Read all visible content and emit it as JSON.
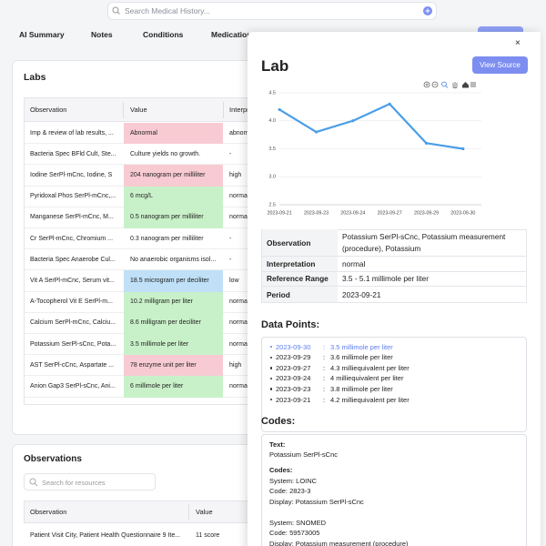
{
  "search_placeholder": "Search Medical History...",
  "tabs": [
    "AI Summary",
    "Notes",
    "Conditions",
    "Medications"
  ],
  "labs": {
    "title": "Labs",
    "columns": [
      "Observation",
      "Value",
      "Interpretation"
    ],
    "rows": [
      {
        "observation": "Imp & review of lab results, ...",
        "value": "Abnormal",
        "interpretation": "abnormal",
        "highlight": "#f8cbd3"
      },
      {
        "observation": "Bacteria Spec BFld Cult, Ste...",
        "value": "Culture yields no growth.",
        "interpretation": "-",
        "highlight": null
      },
      {
        "observation": "Iodine SerPl-mCnc, Iodine, S",
        "value": "204 nanogram per milliliter",
        "interpretation": "high",
        "highlight": "#f8cbd3"
      },
      {
        "observation": "Pyridoxal Phos SerPl-mCnc,...",
        "value": "6 mcg/L",
        "interpretation": "normal",
        "highlight": "#c9f1c9"
      },
      {
        "observation": "Manganese SerPl-mCnc, M...",
        "value": "0.5 nanogram per milliliter",
        "interpretation": "normal",
        "highlight": "#c9f1c9"
      },
      {
        "observation": "Cr SerPl-mCnc, Chromium ...",
        "value": "0.3 nanogram per milliliter",
        "interpretation": "-",
        "highlight": null
      },
      {
        "observation": "Bacteria Spec Anaerobe Cul...",
        "value": "No anaerobic organisms isol...",
        "interpretation": "-",
        "highlight": null
      },
      {
        "observation": "Vit A SerPl-mCnc, Serum vit...",
        "value": "18.5 microgram per deciliter",
        "interpretation": "low",
        "highlight": "#bfe0f6"
      },
      {
        "observation": "A-Tocopherol Vit E SerPl-m...",
        "value": "10.2 milligram per liter",
        "interpretation": "normal",
        "highlight": "#c9f1c9"
      },
      {
        "observation": "Calcium SerPl-mCnc, Calciu...",
        "value": "8.6 milligram per deciliter",
        "interpretation": "normal",
        "highlight": "#c9f1c9"
      },
      {
        "observation": "Potassium SerPl-sCnc, Pota...",
        "value": "3.5 millimole per liter",
        "interpretation": "normal",
        "highlight": "#c9f1c9"
      },
      {
        "observation": "AST SerPl-cCnc, Aspartate ...",
        "value": "78 enzyme unit per liter",
        "interpretation": "high",
        "highlight": "#f8cbd3"
      },
      {
        "observation": "Anion Gap3 SerPl-sCnc, Ani...",
        "value": "6 millimole per liter",
        "interpretation": "normal",
        "highlight": "#c9f1c9"
      }
    ]
  },
  "observations": {
    "title": "Observations",
    "search_placeholder": "Search for resources",
    "columns": [
      "Observation",
      "Value"
    ],
    "rows": [
      [
        "Patient Visit City, Patient Health Questionnaire 9 Ite...",
        "11 score"
      ]
    ]
  },
  "panel": {
    "close": "×",
    "title": "Lab",
    "button": "View Source"
  },
  "chart_data": {
    "type": "line",
    "categories": [
      "2023-09-21",
      "2023-09-23",
      "2023-09-24",
      "2023-09-27",
      "2023-09-29",
      "2023-09-30"
    ],
    "values": [
      4.2,
      3.8,
      4.0,
      4.3,
      3.6,
      3.5
    ],
    "color": "#4a9ee8",
    "ylim": [
      2.5,
      4.5
    ],
    "yticks": [
      2.5,
      {
        "value": 3.0,
        "label": "3.0"
      },
      3.5,
      {
        "value": 4.0,
        "label": "4.0"
      },
      4.5
    ],
    "grid": true
  },
  "details": [
    {
      "label": "Observation",
      "value": "Potassium SerPl-sCnc, Potassium measurement (procedure), Potassium"
    },
    {
      "label": "Interpretation",
      "value": "normal"
    },
    {
      "label": "Reference Range",
      "value": "3.5 - 5.1 millimole per liter"
    },
    {
      "label": "Period",
      "value": "2023-09-21"
    }
  ],
  "data_points": {
    "title": "Data Points:",
    "separator": ":",
    "items": [
      {
        "date": "2023-09-30",
        "value": "3.5 millimole per liter"
      },
      {
        "date": "2023-09-29",
        "value": "3.6 millimole per liter"
      },
      {
        "date": "2023-09-27",
        "value": "4.3 milliequivalent per liter"
      },
      {
        "date": "2023-09-24",
        "value": "4 milliequivalent per liter"
      },
      {
        "date": "2023-09-23",
        "value": "3.8 millimole per liter"
      },
      {
        "date": "2023-09-21",
        "value": "4.2 milliequivalent per liter"
      }
    ]
  },
  "codes": {
    "title": "Codes:",
    "text_label": "Text:",
    "text": "Potassium SerPl-sCnc",
    "codes_label": "Codes:",
    "systems": [
      [
        "System: LOINC",
        "Code: 2823-3",
        "Display: Potassium SerPl-sCnc"
      ],
      [
        "System: SNOMED",
        "Code: 59573005",
        "Display: Potassium measurement (procedure)"
      ]
    ]
  }
}
